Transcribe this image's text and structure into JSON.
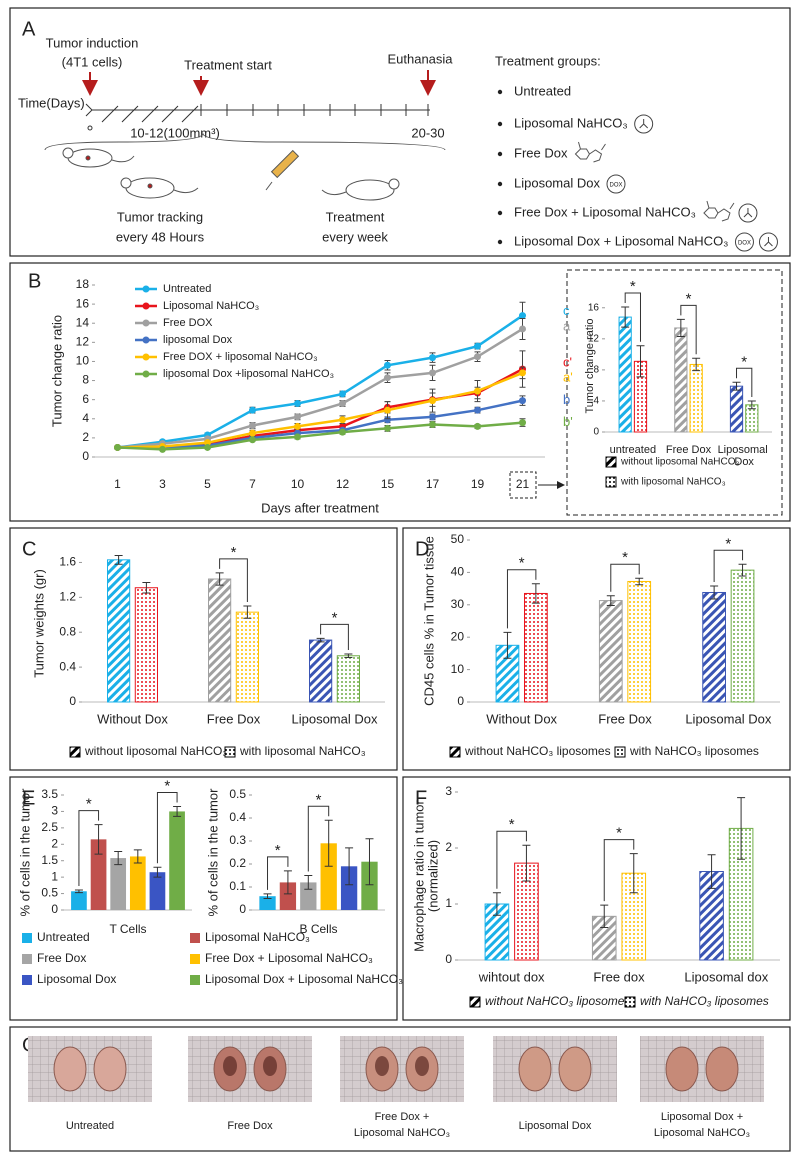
{
  "panel_a": {
    "label": "A",
    "induction": [
      "Tumor induction",
      "(4T1 cells)"
    ],
    "start": "Treatment start",
    "end": "Euthanasia",
    "axis_label": "Time(Days)",
    "zero": "0",
    "mid": "10-12(100mm³)",
    "final": "20-30",
    "tracking": [
      "Tumor tracking",
      "every 48 Hours"
    ],
    "treatment": [
      "Treatment",
      "every week"
    ],
    "groups_title": "Treatment groups:",
    "groups": [
      "Untreated",
      "Liposomal NaHCO₃",
      "Free Dox",
      "Liposomal Dox",
      "Free Dox + Liposomal NaHCO₃",
      "Liposomal Dox + Liposomal NaHCO₃"
    ],
    "dox_icon": "DOX"
  },
  "chart_data": [
    {
      "type": "line",
      "label": "B",
      "xlabel": "Days after treatment",
      "ylabel": "Tumor change ratio",
      "categories": [
        "1",
        "3",
        "5",
        "7",
        "10",
        "12",
        "15",
        "17",
        "19",
        "21"
      ],
      "ylim": [
        0,
        18
      ],
      "yticks": [
        0,
        2,
        4,
        6,
        8,
        10,
        12,
        14,
        16,
        18
      ],
      "legend": "upper left",
      "series": [
        {
          "name": "Untreated",
          "color": "#1ab0e8",
          "values": [
            1,
            1.6,
            2.3,
            4.9,
            5.6,
            6.6,
            9.6,
            10.4,
            11.6,
            14.8
          ],
          "errors": [
            0.1,
            0.15,
            0.2,
            0.3,
            0.3,
            0.3,
            0.5,
            0.5,
            0.3,
            1.4
          ],
          "end_label": "c"
        },
        {
          "name": "Liposomal NaHCO₃",
          "color": "#e8141c",
          "values": [
            1,
            1.1,
            1.3,
            2.2,
            2.8,
            3.2,
            5.2,
            6.0,
            6.7,
            9.2
          ],
          "errors": [
            0.1,
            0.1,
            0.15,
            0.2,
            0.2,
            0.3,
            0.6,
            0.7,
            0.6,
            1.9
          ],
          "end_label": "c'"
        },
        {
          "name": "Free DOX",
          "color": "#a0a0a0",
          "values": [
            1,
            1.4,
            1.9,
            3.3,
            4.2,
            5.6,
            8.3,
            8.8,
            10.5,
            13.4
          ],
          "errors": [
            0.1,
            0.15,
            0.15,
            0.3,
            0.3,
            0.3,
            0.5,
            0.8,
            0.5,
            1.1
          ],
          "end_label": "a"
        },
        {
          "name": "liposomal Dox",
          "color": "#4472c4",
          "values": [
            1,
            1.0,
            1.2,
            2.0,
            2.5,
            2.8,
            3.9,
            4.2,
            4.9,
            5.9
          ],
          "errors": [
            0.1,
            0.1,
            0.1,
            0.2,
            0.2,
            0.2,
            0.3,
            0.3,
            0.3,
            0.5
          ],
          "end_label": "b"
        },
        {
          "name": "Free DOX + liposomal NaHCO₃",
          "color": "#ffc000",
          "values": [
            1,
            1.1,
            1.5,
            2.5,
            3.2,
            3.9,
            4.9,
            5.9,
            6.9,
            8.8
          ],
          "errors": [
            0.1,
            0.1,
            0.2,
            0.3,
            0.3,
            0.4,
            0.9,
            1.2,
            1.1,
            0.6
          ],
          "end_label": "a'"
        },
        {
          "name": "liposomal Dox +liposomal NaHCO₃",
          "color": "#70ad47",
          "values": [
            1,
            0.8,
            1.0,
            1.8,
            2.1,
            2.6,
            3.0,
            3.4,
            3.2,
            3.6
          ],
          "errors": [
            0.1,
            0.1,
            0.1,
            0.15,
            0.2,
            0.2,
            0.3,
            0.3,
            0.2,
            0.4
          ],
          "end_label": "b'"
        }
      ]
    },
    {
      "type": "bar",
      "ylabel": "Tumor change ratio",
      "categories": [
        "untreated",
        "Free Dox",
        "Liposomal Dox"
      ],
      "ylim": [
        0,
        17
      ],
      "yticks": [
        0,
        4,
        8,
        12,
        16
      ],
      "legend": "bottom",
      "series": [
        {
          "name": "without liposomal NaHCO₃",
          "pattern": "hatch",
          "colors": [
            "#1ab0e8",
            "#a0a0a0",
            "#3a55b4"
          ],
          "values": [
            14.8,
            13.4,
            5.9
          ],
          "errors": [
            1.3,
            1.1,
            0.5
          ]
        },
        {
          "name": "with liposomal NaHCO₃",
          "pattern": "dots",
          "colors": [
            "#e8141c",
            "#ffc000",
            "#70ad47"
          ],
          "values": [
            9.1,
            8.7,
            3.5
          ],
          "errors": [
            2.0,
            0.8,
            0.5
          ]
        }
      ],
      "brackets": [
        [
          0,
          0,
          1
        ],
        [
          1,
          0,
          1
        ],
        [
          2,
          0,
          1
        ]
      ],
      "bracket_label": "*"
    },
    {
      "type": "bar",
      "label": "C",
      "ylabel": "Tumor  weights (gr)",
      "categories": [
        "Without Dox",
        "Free Dox",
        "Liposomal Dox"
      ],
      "ylim": [
        0,
        1.8
      ],
      "yticks": [
        0,
        0.4,
        0.8,
        1.2,
        1.6
      ],
      "legend": "bottom",
      "series": [
        {
          "name": "without liposomal NaHCO₃",
          "pattern": "hatch",
          "colors": [
            "#1ab0e8",
            "#a0a0a0",
            "#3a55b4"
          ],
          "values": [
            1.63,
            1.41,
            0.71
          ],
          "errors": [
            0.05,
            0.07,
            0.02
          ]
        },
        {
          "name": "with liposomal NaHCO₃",
          "pattern": "dots",
          "colors": [
            "#e8141c",
            "#ffc000",
            "#70ad47"
          ],
          "values": [
            1.31,
            1.03,
            0.53
          ],
          "errors": [
            0.06,
            0.07,
            0.02
          ]
        }
      ],
      "brackets": [
        [
          1,
          0,
          1
        ],
        [
          2,
          0,
          1
        ]
      ],
      "bracket_label": "*"
    },
    {
      "type": "bar",
      "label": "D",
      "ylabel": "CD45 cells % in Tumor tissue",
      "categories": [
        "Without Dox",
        "Free Dox",
        "Liposomal Dox"
      ],
      "ylim": [
        0,
        50
      ],
      "yticks": [
        0,
        10,
        20,
        30,
        40,
        50
      ],
      "legend": "bottom",
      "series": [
        {
          "name": "without NaHCO₃ liposomes",
          "pattern": "hatch",
          "colors": [
            "#1ab0e8",
            "#a0a0a0",
            "#3a55b4"
          ],
          "values": [
            17.5,
            31.3,
            33.8
          ],
          "errors": [
            4,
            1.5,
            2
          ]
        },
        {
          "name": "with NaHCO₃ liposomes",
          "pattern": "dots",
          "colors": [
            "#e8141c",
            "#ffc000",
            "#70ad47"
          ],
          "values": [
            33.5,
            37.2,
            40.7
          ],
          "errors": [
            3,
            1,
            1.8
          ]
        }
      ],
      "brackets": [
        [
          0,
          0,
          1
        ],
        [
          1,
          0,
          1
        ],
        [
          2,
          0,
          1
        ]
      ],
      "bracket_label": "*"
    },
    {
      "type": "bar",
      "label": "E",
      "ylabel": "% of cells in the tumor",
      "categories": [
        "T Cells"
      ],
      "ylim": [
        0,
        3.5
      ],
      "yticks": [
        0,
        0.5,
        1,
        1.5,
        2,
        2.5,
        3,
        3.5
      ],
      "legend": "bottom",
      "series": [
        {
          "name": "Untreated",
          "color": "#1ab0e8",
          "values": [
            0.57
          ],
          "errors": [
            0.04
          ]
        },
        {
          "name": "Liposomal NaHCO₃",
          "color": "#c0504d",
          "values": [
            2.15
          ],
          "errors": [
            0.45
          ]
        },
        {
          "name": "Free Dox",
          "color": "#a5a5a5",
          "values": [
            1.58
          ],
          "errors": [
            0.2
          ]
        },
        {
          "name": "Free Dox + Liposomal NaHCO₃",
          "color": "#ffc000",
          "values": [
            1.63
          ],
          "errors": [
            0.2
          ]
        },
        {
          "name": "Liposomal Dox",
          "color": "#3a55c4",
          "values": [
            1.15
          ],
          "errors": [
            0.15
          ]
        },
        {
          "name": "Liposomal Dox + Liposomal NaHCO₃",
          "color": "#70ad47",
          "values": [
            3.0
          ],
          "errors": [
            0.15
          ]
        }
      ],
      "brackets": [
        [
          0,
          0,
          1
        ],
        [
          0,
          4,
          5
        ]
      ],
      "bracket_label": "*"
    },
    {
      "type": "bar",
      "ylabel": "% of cells in the tumor",
      "categories": [
        "B Cells"
      ],
      "ylim": [
        0,
        0.5
      ],
      "yticks": [
        0,
        0.1,
        0.2,
        0.3,
        0.4,
        0.5
      ],
      "series": [
        {
          "color": "#1ab0e8",
          "values": [
            0.06
          ],
          "errors": [
            0.01
          ]
        },
        {
          "color": "#c0504d",
          "values": [
            0.12
          ],
          "errors": [
            0.05
          ]
        },
        {
          "color": "#a5a5a5",
          "values": [
            0.12
          ],
          "errors": [
            0.03
          ]
        },
        {
          "color": "#ffc000",
          "values": [
            0.29
          ],
          "errors": [
            0.1
          ]
        },
        {
          "color": "#3a55c4",
          "values": [
            0.19
          ],
          "errors": [
            0.08
          ]
        },
        {
          "color": "#70ad47",
          "values": [
            0.21
          ],
          "errors": [
            0.1
          ]
        }
      ],
      "brackets": [
        [
          0,
          0,
          1
        ],
        [
          0,
          2,
          3
        ]
      ],
      "bracket_label": "*"
    },
    {
      "type": "bar",
      "label": "F",
      "ylabel": [
        "Macrophage ratio in tumor",
        "(normalized)"
      ],
      "categories": [
        "wihtout dox",
        "Free dox",
        "Liposomal dox"
      ],
      "ylim": [
        0,
        3
      ],
      "yticks": [
        0,
        1,
        2,
        3
      ],
      "legend": "bottom",
      "legend_italic": true,
      "series": [
        {
          "name": "without NaHCO₃ liposomes",
          "pattern": "hatch",
          "colors": [
            "#1ab0e8",
            "#a0a0a0",
            "#3a55b4"
          ],
          "values": [
            1.0,
            0.78,
            1.58
          ],
          "errors": [
            0.2,
            0.2,
            0.3
          ]
        },
        {
          "name": "with NaHCO₃ liposomes",
          "pattern": "dots",
          "colors": [
            "#e8141c",
            "#ffc000",
            "#70ad47"
          ],
          "values": [
            1.73,
            1.55,
            2.35
          ],
          "errors": [
            0.32,
            0.35,
            0.55
          ]
        }
      ],
      "brackets": [
        [
          0,
          0,
          1
        ],
        [
          1,
          0,
          1
        ]
      ],
      "bracket_label": "*"
    }
  ],
  "panel_g": {
    "label": "G",
    "labels": [
      [
        "Untreated"
      ],
      [
        "Free Dox"
      ],
      [
        "Free Dox +",
        "Liposomal NaHCO₃"
      ],
      [
        "Liposomal Dox"
      ],
      [
        "Liposomal Dox +",
        "Liposomal NaHCO₃"
      ]
    ]
  }
}
